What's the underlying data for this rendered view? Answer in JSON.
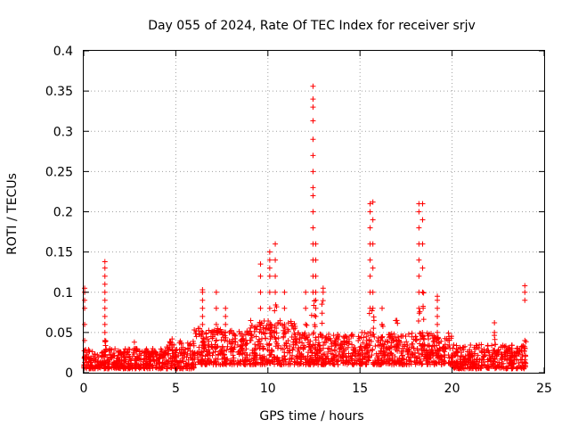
{
  "chart_data": {
    "type": "scatter",
    "title": "Day 055 of 2024, Rate Of TEC Index for receiver srjv",
    "xlabel": "GPS time / hours",
    "ylabel": "ROTI / TECUs",
    "xlim": [
      0,
      25
    ],
    "ylim": [
      0,
      0.4
    ],
    "x_ticks": [
      0,
      5,
      10,
      15,
      20,
      25
    ],
    "x_tick_labels": [
      "0",
      "5",
      "10",
      "15",
      "20",
      "25"
    ],
    "y_ticks": [
      0,
      0.05,
      0.1,
      0.15,
      0.2,
      0.25,
      0.3,
      0.35,
      0.4
    ],
    "y_tick_labels": [
      "0",
      "0.05",
      "0.1",
      "0.15",
      "0.2",
      "0.25",
      "0.3",
      "0.35",
      "0.4"
    ],
    "grid": true,
    "marker": "+",
    "marker_color": "#ff0000",
    "series": [
      {
        "name": "ROTI",
        "background_band": [
          {
            "x": [
              0.0,
              4.5
            ],
            "y_min": 0.005,
            "y_max": 0.03
          },
          {
            "x": [
              4.5,
              6.0
            ],
            "y_min": 0.005,
            "y_max": 0.04
          },
          {
            "x": [
              6.0,
              9.0
            ],
            "y_min": 0.01,
            "y_max": 0.055
          },
          {
            "x": [
              9.0,
              11.5
            ],
            "y_min": 0.01,
            "y_max": 0.065
          },
          {
            "x": [
              11.5,
              14.0
            ],
            "y_min": 0.01,
            "y_max": 0.05
          },
          {
            "x": [
              14.0,
              17.0
            ],
            "y_min": 0.01,
            "y_max": 0.05
          },
          {
            "x": [
              17.0,
              20.0
            ],
            "y_min": 0.01,
            "y_max": 0.05
          },
          {
            "x": [
              20.0,
              24.0
            ],
            "y_min": 0.005,
            "y_max": 0.035
          }
        ],
        "spikes": [
          {
            "x": 0.05,
            "y": [
              0.02,
              0.04,
              0.06,
              0.08,
              0.09,
              0.1,
              0.105
            ]
          },
          {
            "x": 1.15,
            "y": [
              0.04,
              0.05,
              0.06,
              0.07,
              0.08,
              0.09,
              0.1,
              0.11,
              0.12,
              0.13,
              0.138
            ]
          },
          {
            "x": 2.75,
            "y": [
              0.03,
              0.038
            ]
          },
          {
            "x": 4.8,
            "y": [
              0.035,
              0.042
            ]
          },
          {
            "x": 6.45,
            "y": [
              0.05,
              0.06,
              0.07,
              0.08,
              0.09,
              0.1,
              0.103
            ]
          },
          {
            "x": 7.2,
            "y": [
              0.06,
              0.08,
              0.1
            ]
          },
          {
            "x": 7.7,
            "y": [
              0.05,
              0.06,
              0.07,
              0.08
            ]
          },
          {
            "x": 9.6,
            "y": [
              0.06,
              0.08,
              0.1,
              0.12,
              0.135
            ]
          },
          {
            "x": 10.1,
            "y": [
              0.06,
              0.08,
              0.1,
              0.12,
              0.13,
              0.14,
              0.15
            ]
          },
          {
            "x": 10.4,
            "y": [
              0.1,
              0.12,
              0.14,
              0.16
            ]
          },
          {
            "x": 10.9,
            "y": [
              0.06,
              0.08,
              0.1
            ]
          },
          {
            "x": 12.05,
            "y": [
              0.06,
              0.08,
              0.1
            ]
          },
          {
            "x": 12.45,
            "y": [
              0.1,
              0.12,
              0.14,
              0.16,
              0.18,
              0.2,
              0.22,
              0.23,
              0.25,
              0.27,
              0.29,
              0.313,
              0.33,
              0.34,
              0.356
            ]
          },
          {
            "x": 12.6,
            "y": [
              0.07,
              0.08,
              0.09,
              0.1,
              0.12,
              0.14,
              0.16
            ]
          },
          {
            "x": 13.0,
            "y": [
              0.1,
              0.105
            ]
          },
          {
            "x": 15.55,
            "y": [
              0.08,
              0.1,
              0.12,
              0.14,
              0.16,
              0.18,
              0.2,
              0.21
            ]
          },
          {
            "x": 15.7,
            "y": [
              0.08,
              0.1,
              0.13,
              0.16,
              0.19,
              0.212
            ]
          },
          {
            "x": 16.2,
            "y": [
              0.06,
              0.08
            ]
          },
          {
            "x": 17.0,
            "y": [
              0.065
            ]
          },
          {
            "x": 18.2,
            "y": [
              0.08,
              0.1,
              0.12,
              0.14,
              0.16,
              0.18,
              0.2,
              0.21
            ]
          },
          {
            "x": 18.4,
            "y": [
              0.1,
              0.13,
              0.16,
              0.19,
              0.21
            ]
          },
          {
            "x": 19.2,
            "y": [
              0.05,
              0.06,
              0.07,
              0.08,
              0.09,
              0.095
            ]
          },
          {
            "x": 22.3,
            "y": [
              0.05,
              0.062
            ]
          },
          {
            "x": 23.95,
            "y": [
              0.04,
              0.09,
              0.1,
              0.108
            ]
          }
        ]
      }
    ]
  }
}
